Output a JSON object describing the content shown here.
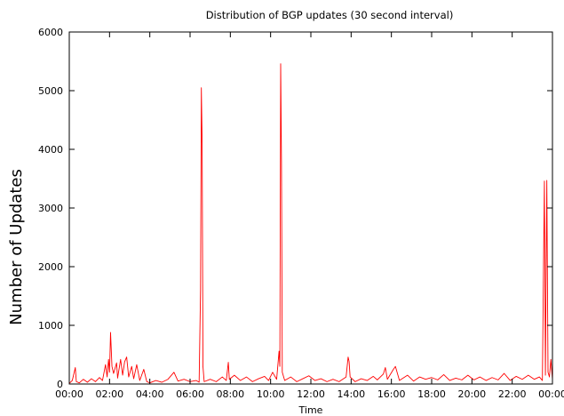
{
  "chart_data": {
    "type": "line",
    "title": "Distribution of BGP updates (30 second interval)",
    "xlabel": "Time",
    "ylabel": "Number of Updates",
    "x_unit": "hours",
    "xlim": [
      0,
      24
    ],
    "ylim": [
      0,
      6000
    ],
    "grid": false,
    "legend": "none",
    "x_ticks": [
      {
        "value": 0,
        "label": "00:00"
      },
      {
        "value": 2,
        "label": "02:00"
      },
      {
        "value": 4,
        "label": "04:00"
      },
      {
        "value": 6,
        "label": "06:00"
      },
      {
        "value": 8,
        "label": "08:00"
      },
      {
        "value": 10,
        "label": "10:00"
      },
      {
        "value": 12,
        "label": "12:00"
      },
      {
        "value": 14,
        "label": "14:00"
      },
      {
        "value": 16,
        "label": "16:00"
      },
      {
        "value": 18,
        "label": "18:00"
      },
      {
        "value": 20,
        "label": "20:00"
      },
      {
        "value": 22,
        "label": "22:00"
      },
      {
        "value": 24,
        "label": "00:00"
      }
    ],
    "y_ticks": [
      {
        "value": 0,
        "label": "0"
      },
      {
        "value": 1000,
        "label": "1000"
      },
      {
        "value": 2000,
        "label": "2000"
      },
      {
        "value": 3000,
        "label": "3000"
      },
      {
        "value": 4000,
        "label": "4000"
      },
      {
        "value": 5000,
        "label": "5000"
      },
      {
        "value": 6000,
        "label": "6000"
      }
    ],
    "series": [
      {
        "color": "#ff0000",
        "points": [
          [
            0.0,
            10
          ],
          [
            0.15,
            60
          ],
          [
            0.3,
            280
          ],
          [
            0.35,
            40
          ],
          [
            0.5,
            20
          ],
          [
            0.7,
            80
          ],
          [
            0.9,
            30
          ],
          [
            1.1,
            90
          ],
          [
            1.3,
            40
          ],
          [
            1.5,
            110
          ],
          [
            1.65,
            60
          ],
          [
            1.8,
            330
          ],
          [
            1.88,
            120
          ],
          [
            1.95,
            420
          ],
          [
            2.0,
            200
          ],
          [
            2.05,
            880
          ],
          [
            2.12,
            300
          ],
          [
            2.2,
            180
          ],
          [
            2.35,
            360
          ],
          [
            2.4,
            100
          ],
          [
            2.55,
            420
          ],
          [
            2.65,
            150
          ],
          [
            2.75,
            380
          ],
          [
            2.85,
            460
          ],
          [
            2.95,
            120
          ],
          [
            3.1,
            300
          ],
          [
            3.2,
            90
          ],
          [
            3.35,
            330
          ],
          [
            3.5,
            60
          ],
          [
            3.7,
            250
          ],
          [
            3.85,
            40
          ],
          [
            4.0,
            20
          ],
          [
            4.3,
            60
          ],
          [
            4.6,
            30
          ],
          [
            4.9,
            80
          ],
          [
            5.2,
            200
          ],
          [
            5.4,
            50
          ],
          [
            5.7,
            80
          ],
          [
            6.0,
            40
          ],
          [
            6.3,
            60
          ],
          [
            6.45,
            30
          ],
          [
            6.52,
            1600
          ],
          [
            6.56,
            5050
          ],
          [
            6.6,
            4100
          ],
          [
            6.64,
            300
          ],
          [
            6.7,
            40
          ],
          [
            7.0,
            80
          ],
          [
            7.3,
            40
          ],
          [
            7.6,
            120
          ],
          [
            7.8,
            60
          ],
          [
            7.9,
            370
          ],
          [
            7.95,
            80
          ],
          [
            8.2,
            150
          ],
          [
            8.5,
            60
          ],
          [
            8.8,
            120
          ],
          [
            9.1,
            40
          ],
          [
            9.4,
            90
          ],
          [
            9.7,
            130
          ],
          [
            9.9,
            60
          ],
          [
            10.1,
            200
          ],
          [
            10.3,
            80
          ],
          [
            10.42,
            560
          ],
          [
            10.46,
            300
          ],
          [
            10.5,
            5460
          ],
          [
            10.54,
            3800
          ],
          [
            10.58,
            200
          ],
          [
            10.7,
            60
          ],
          [
            11.0,
            120
          ],
          [
            11.3,
            40
          ],
          [
            11.6,
            90
          ],
          [
            11.9,
            140
          ],
          [
            12.2,
            60
          ],
          [
            12.5,
            90
          ],
          [
            12.8,
            40
          ],
          [
            13.1,
            80
          ],
          [
            13.4,
            40
          ],
          [
            13.75,
            120
          ],
          [
            13.85,
            460
          ],
          [
            13.9,
            380
          ],
          [
            13.95,
            120
          ],
          [
            14.2,
            40
          ],
          [
            14.5,
            90
          ],
          [
            14.8,
            60
          ],
          [
            15.1,
            130
          ],
          [
            15.3,
            70
          ],
          [
            15.6,
            170
          ],
          [
            15.7,
            280
          ],
          [
            15.8,
            80
          ],
          [
            16.1,
            250
          ],
          [
            16.2,
            300
          ],
          [
            16.4,
            60
          ],
          [
            16.8,
            150
          ],
          [
            17.1,
            50
          ],
          [
            17.4,
            120
          ],
          [
            17.7,
            80
          ],
          [
            18.0,
            110
          ],
          [
            18.3,
            70
          ],
          [
            18.6,
            160
          ],
          [
            18.9,
            60
          ],
          [
            19.2,
            100
          ],
          [
            19.5,
            70
          ],
          [
            19.8,
            150
          ],
          [
            20.1,
            70
          ],
          [
            20.4,
            120
          ],
          [
            20.7,
            60
          ],
          [
            21.0,
            110
          ],
          [
            21.3,
            70
          ],
          [
            21.6,
            180
          ],
          [
            21.9,
            60
          ],
          [
            22.2,
            130
          ],
          [
            22.5,
            80
          ],
          [
            22.8,
            150
          ],
          [
            23.1,
            80
          ],
          [
            23.35,
            120
          ],
          [
            23.5,
            60
          ],
          [
            23.55,
            1800
          ],
          [
            23.6,
            3460
          ],
          [
            23.65,
            150
          ],
          [
            23.72,
            3470
          ],
          [
            23.78,
            200
          ],
          [
            23.85,
            120
          ],
          [
            23.92,
            420
          ],
          [
            24.0,
            80
          ]
        ]
      }
    ]
  }
}
